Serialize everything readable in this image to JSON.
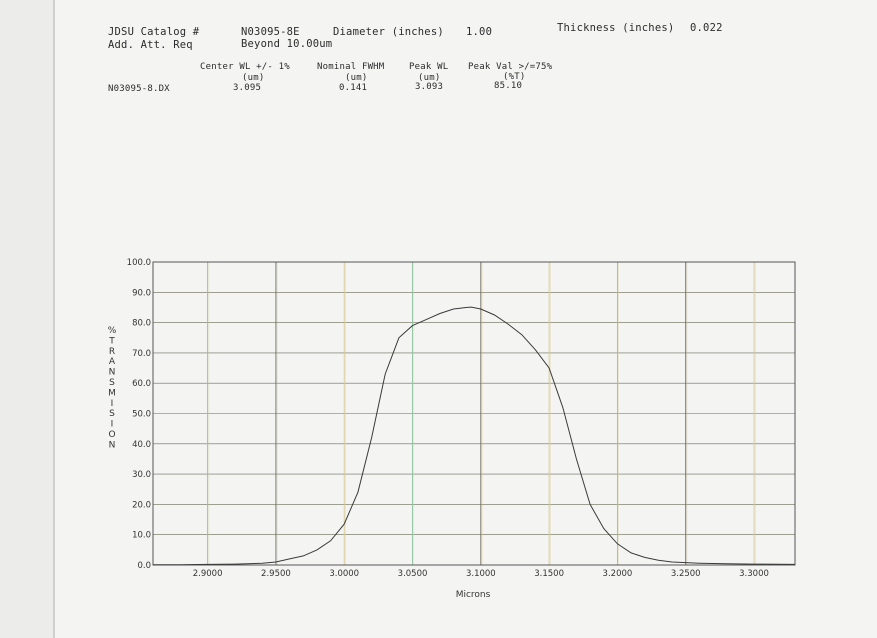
{
  "header": {
    "catalog_label": "JDSU Catalog #",
    "catalog_value": "N03095-8E",
    "diameter_label": "Diameter (inches)",
    "diameter_value": "1.00",
    "thickness_label": "Thickness (inches)",
    "thickness_value": "0.022",
    "att_label": "Add. Att. Req",
    "att_value": "Beyond 10.00um"
  },
  "spec_table": {
    "columns": [
      {
        "title": "Center WL +/- 1%",
        "unit": "(um)"
      },
      {
        "title": "Nominal FWHM",
        "unit": "(um)"
      },
      {
        "title": "Peak WL",
        "unit": "(um)"
      },
      {
        "title": "Peak Val >/=75%",
        "unit": "(%T)"
      }
    ],
    "row_label": "N03095-8.DX",
    "row_values": [
      "3.095",
      "0.141",
      "3.093",
      "85.10"
    ]
  },
  "chart_data": {
    "type": "line",
    "xlabel": "Microns",
    "ylabel": "% TRANSMISION",
    "xlim": [
      2.86,
      3.33
    ],
    "ylim": [
      0,
      100
    ],
    "x_ticks": [
      "2.9000",
      "2.9500",
      "3.0000",
      "3.0500",
      "3.1000",
      "3.1500",
      "3.2000",
      "3.2500",
      "3.3000"
    ],
    "y_ticks": [
      "0.0",
      "10.0",
      "20.0",
      "30.0",
      "40.0",
      "50.0",
      "60.0",
      "70.0",
      "80.0",
      "90.0",
      "100.0"
    ],
    "grid": true,
    "series": [
      {
        "x": [
          2.86,
          2.88,
          2.9,
          2.92,
          2.94,
          2.95,
          2.96,
          2.97,
          2.98,
          2.99,
          3.0,
          3.01,
          3.02,
          3.03,
          3.04,
          3.05,
          3.06,
          3.07,
          3.08,
          3.09,
          3.093,
          3.1,
          3.11,
          3.12,
          3.13,
          3.14,
          3.15,
          3.16,
          3.17,
          3.18,
          3.19,
          3.2,
          3.21,
          3.22,
          3.23,
          3.24,
          3.25,
          3.26,
          3.27,
          3.28,
          3.3,
          3.33
        ],
        "y": [
          0.1,
          0.1,
          0.2,
          0.3,
          0.6,
          1.0,
          2.0,
          3.0,
          5.0,
          8.0,
          13.5,
          24.0,
          42.0,
          63.0,
          75.0,
          79.0,
          81.0,
          83.0,
          84.5,
          85.0,
          85.1,
          84.5,
          82.5,
          79.5,
          76.0,
          71.0,
          65.0,
          52.0,
          35.0,
          20.0,
          12.0,
          7.0,
          4.0,
          2.5,
          1.6,
          1.0,
          0.8,
          0.6,
          0.5,
          0.4,
          0.3,
          0.2
        ]
      }
    ],
    "colors": {
      "line": "#3a3a3a",
      "frame": "#555555",
      "grid_dark": "#6a6a5a",
      "grid_green": "#8fc0a0",
      "grid_yellow": "#d8c890"
    }
  }
}
